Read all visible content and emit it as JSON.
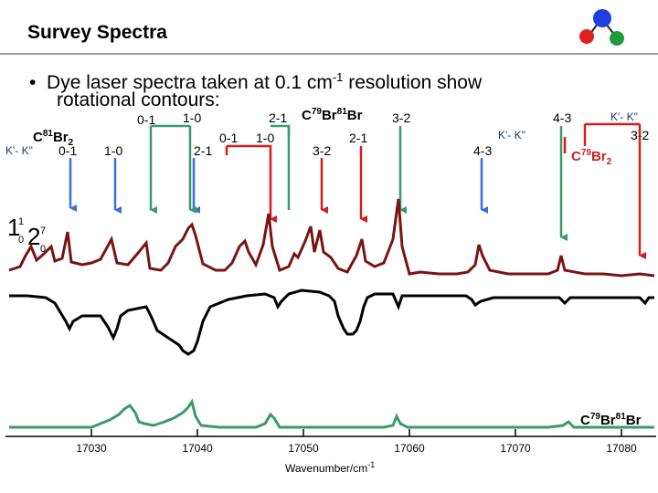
{
  "slide": {
    "title": "Survey Spectra",
    "bullet_prefix": "•",
    "bullet_text_1": "Dye laser spectra taken at 0.1 cm",
    "bullet_sup": "-1",
    "bullet_text_2": " resolution show",
    "bullet_text_line2": "rotational contours:"
  },
  "labels": {
    "c81br2_left": "C",
    "c81br2_sup": "81",
    "c81br2_right": "Br",
    "c81br2_sub": "2",
    "kk_left": "K'- K\"",
    "kk_right1": "K'- K\"",
    "kk_right2": "K'- K\"",
    "mixed_c": "C",
    "mixed_sup1": "79",
    "mixed_br": "Br",
    "mixed_sup2": "81",
    "mixed_br2": "Br",
    "c79br2_c": "C",
    "c79br2_sup": "79",
    "c79br2_br": "Br",
    "c79br2_sub": "2",
    "bottom_c": "C",
    "bottom_sup1": "79",
    "bottom_br": "Br",
    "bottom_sup2": "81",
    "bottom_br2": "Br",
    "blue_01": "0-1",
    "blue_10": "1-0",
    "green_01": "0-1",
    "green_10": "1-0",
    "blue_21": "2-1",
    "red_01": "0-1",
    "red_10": "1-0",
    "green_21": "2-1",
    "red_32": "3-2",
    "green_32": "3-2",
    "red_21": "2-1",
    "blue_43": "4-3",
    "green_43": "4-3",
    "red_32b": "3-2",
    "assignment": "1₁₀2₀⁷"
  },
  "axis": {
    "xlabel": "Wavenumber/cm",
    "xlabel_sup": "-1",
    "ticks": [
      "17030",
      "17040",
      "17050",
      "17060",
      "17070",
      "17080"
    ]
  },
  "colors": {
    "blue": "#3a6fd8",
    "green": "#3a9a6a",
    "red": "#d11f1f",
    "dark_red": "#7a1414",
    "black": "#000000",
    "spectrum_green": "#3a9a6a"
  }
}
